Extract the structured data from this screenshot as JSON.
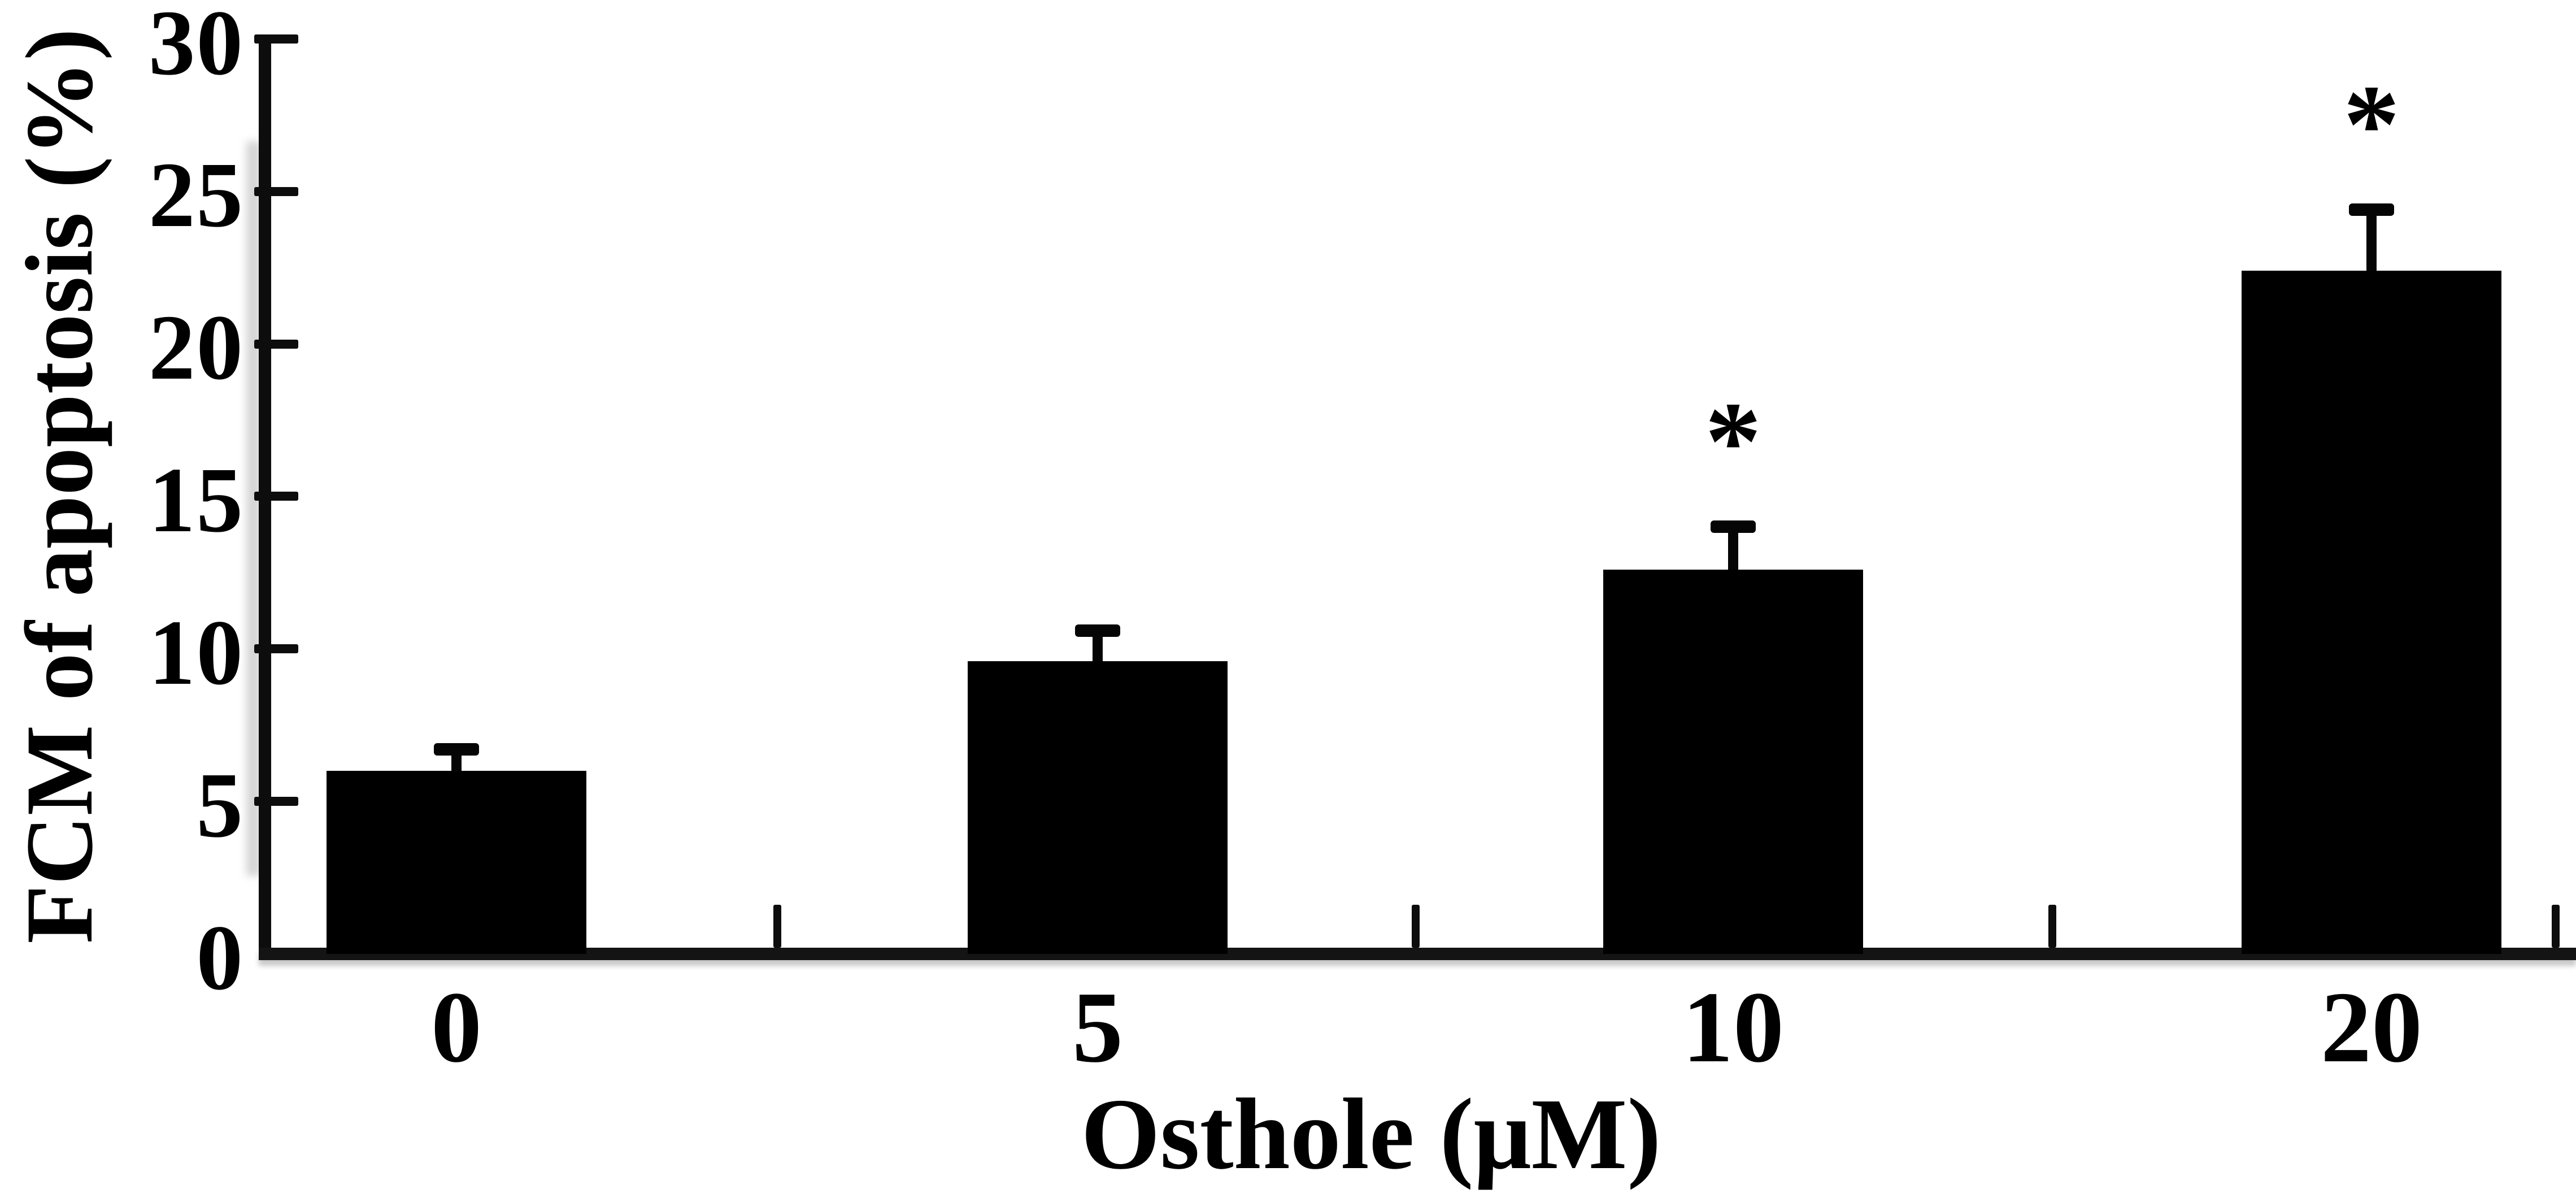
{
  "figure": {
    "background_color": "#ffffff",
    "text_color": "#000000"
  },
  "chart_data": {
    "type": "bar",
    "title": "",
    "categories": [
      "0",
      "5",
      "10",
      "20"
    ],
    "values": [
      6.0,
      9.6,
      12.6,
      22.4
    ],
    "errors_upper": [
      0.7,
      1.0,
      1.4,
      2.0
    ],
    "significance": [
      "",
      "",
      "*",
      "*"
    ],
    "sig_symbol": "*",
    "xlabel": "Osthole (μM)",
    "ylabel": "FCM of apoptosis (%)",
    "ylim": [
      0,
      30
    ],
    "yticks": [
      0,
      5,
      10,
      15,
      20,
      25,
      30
    ],
    "bar_color": "#000000",
    "axis_color": "#0d0d0d",
    "grid": "off",
    "legend": "none",
    "error_bar_style": "upper-cap"
  }
}
